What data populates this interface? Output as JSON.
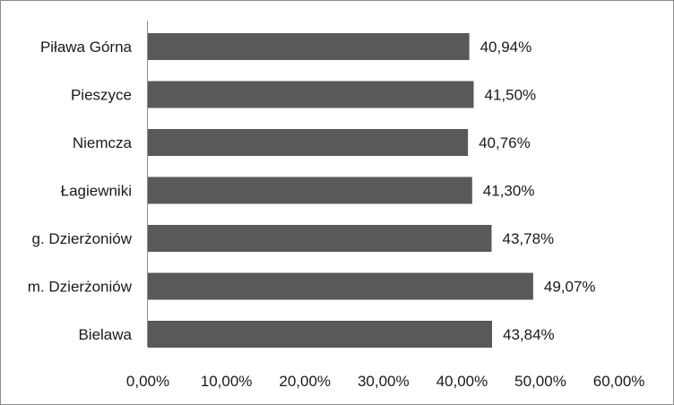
{
  "chart_data": {
    "type": "bar",
    "orientation": "horizontal",
    "categories": [
      "Piława Górna",
      "Pieszyce",
      "Niemcza",
      "Łagiewniki",
      "g. Dzierżoniów",
      "m. Dzierżoniów",
      "Bielawa"
    ],
    "values": [
      40.94,
      41.5,
      40.76,
      41.3,
      43.78,
      49.07,
      43.84
    ],
    "value_labels": [
      "40,94%",
      "41,50%",
      "40,76%",
      "41,30%",
      "43,78%",
      "49,07%",
      "43,84%"
    ],
    "xlim": [
      0,
      60
    ],
    "x_ticks": [
      0,
      10,
      20,
      30,
      40,
      50,
      60
    ],
    "x_tick_labels": [
      "0,00%",
      "10,00%",
      "20,00%",
      "30,00%",
      "40,00%",
      "50,00%",
      "60,00%"
    ],
    "title": "",
    "xlabel": "",
    "ylabel": "",
    "grid": false,
    "legend": "none",
    "bar_color": "#595959"
  }
}
